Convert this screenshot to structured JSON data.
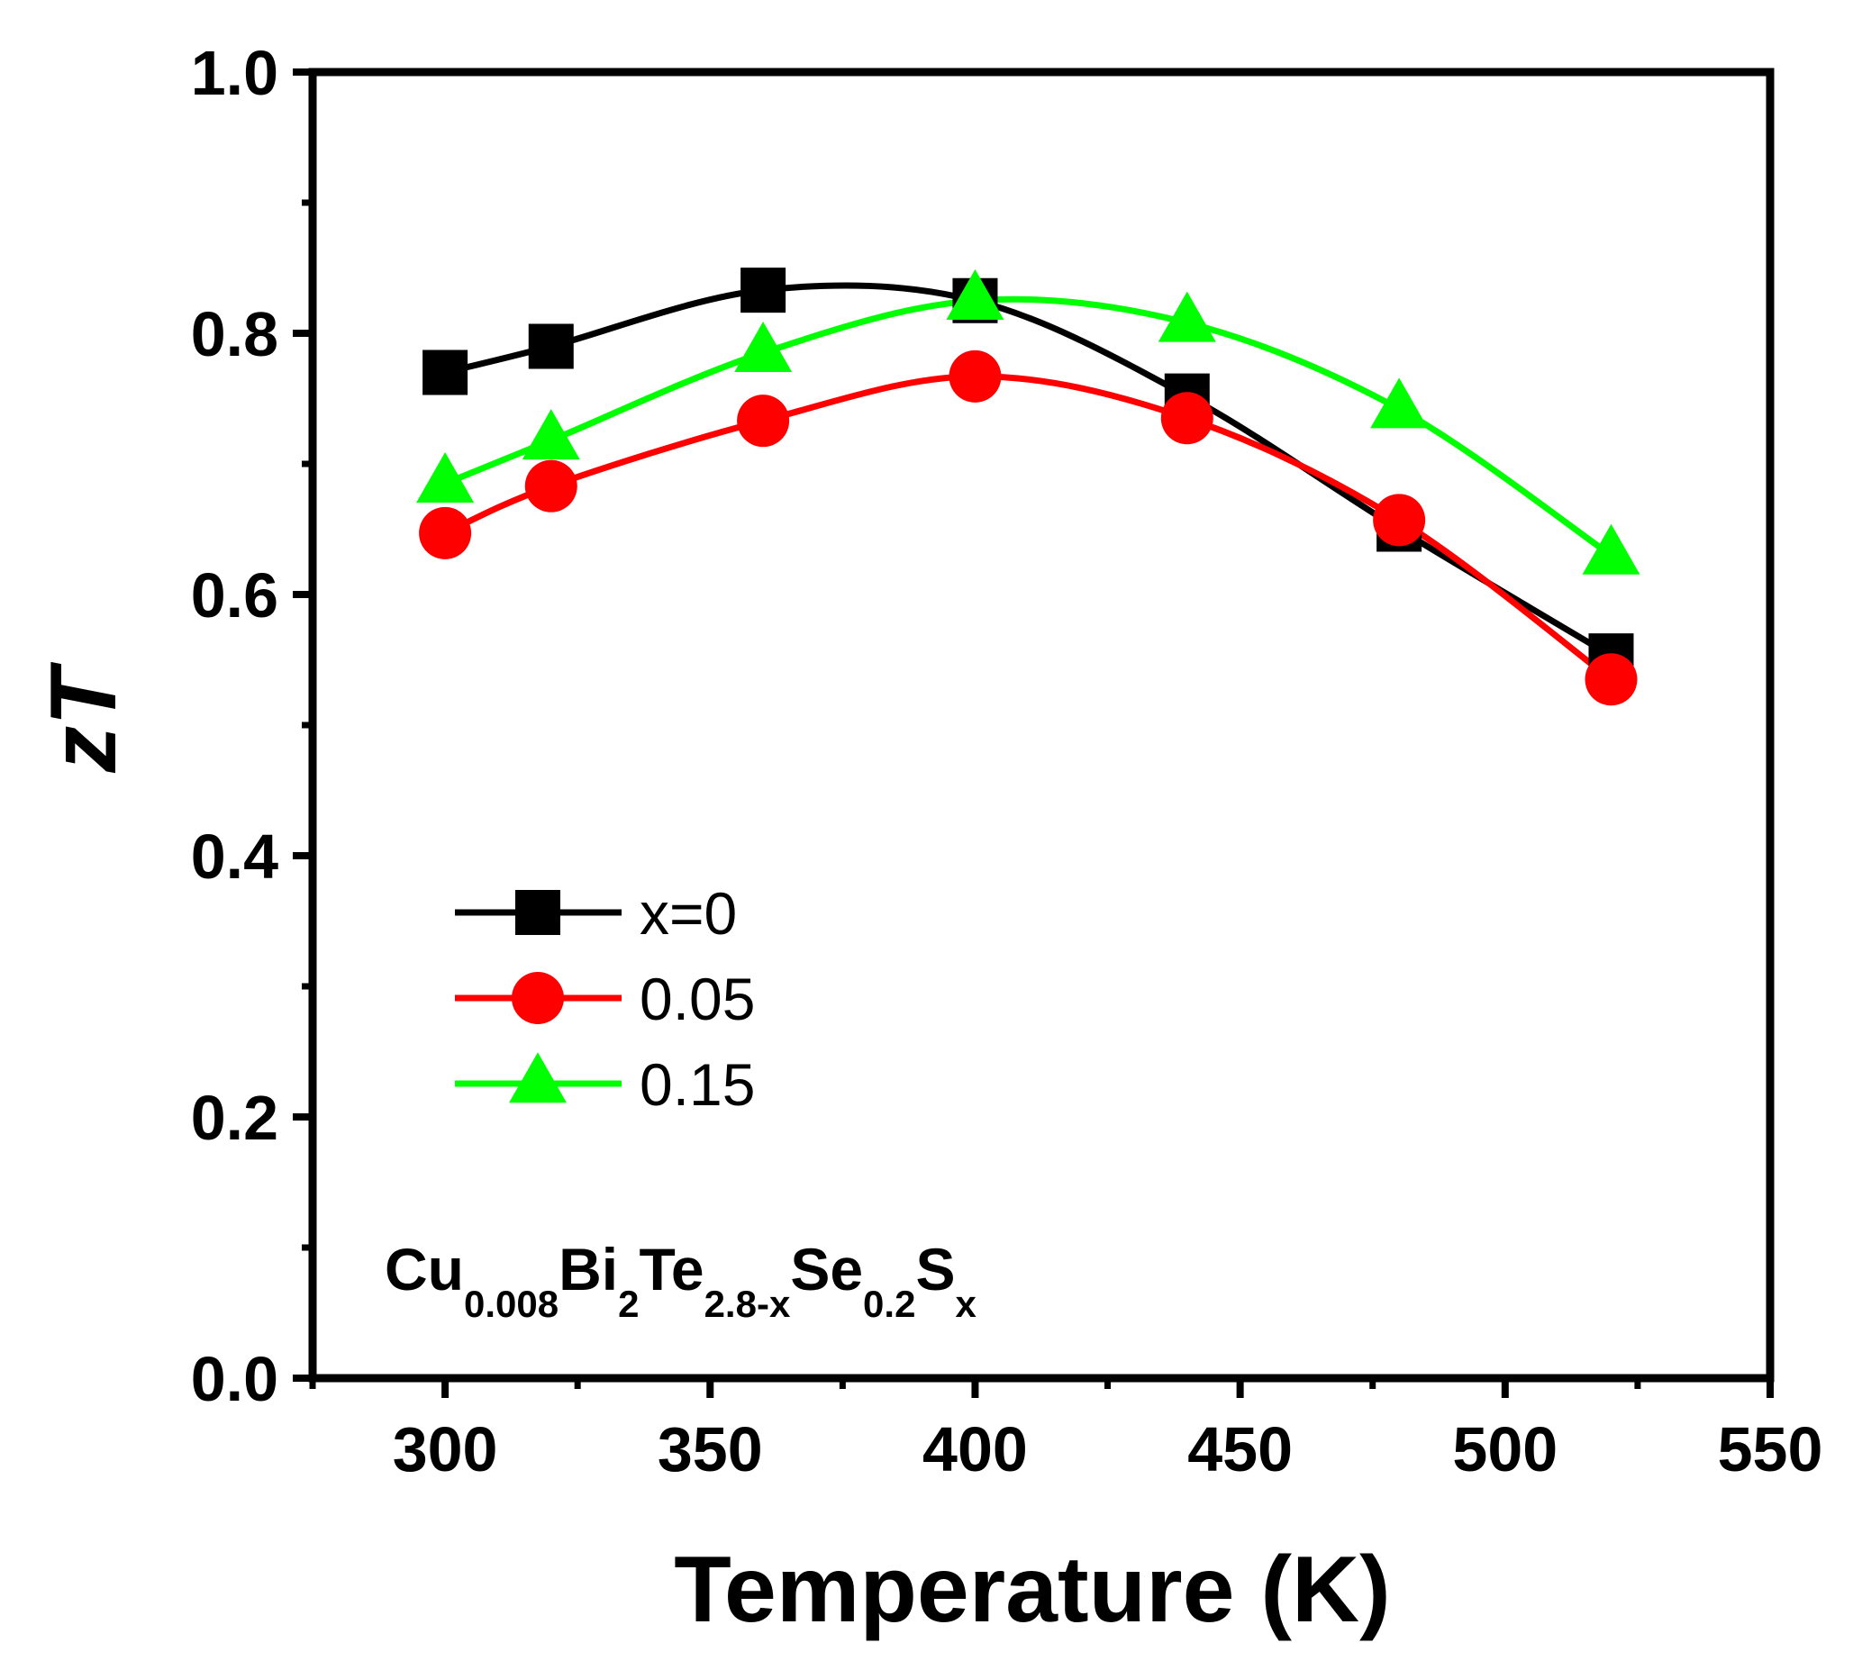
{
  "chart_data": {
    "type": "line",
    "title": "",
    "xlabel": "Temperature (K)",
    "ylabel": "zT",
    "xlim": [
      275,
      550
    ],
    "ylim": [
      0.0,
      1.0
    ],
    "x_ticks": [
      300,
      350,
      400,
      450,
      500,
      550
    ],
    "x_tick_labels": [
      "300",
      "350",
      "400",
      "450",
      "500",
      "550"
    ],
    "y_ticks": [
      0.0,
      0.2,
      0.4,
      0.6,
      0.8,
      1.0
    ],
    "y_tick_labels": [
      "0.0",
      "0.2",
      "0.4",
      "0.6",
      "0.8",
      "1.0"
    ],
    "grid": false,
    "legend_position": "left",
    "series": [
      {
        "name": "x=0",
        "marker": "square",
        "color": "#000000",
        "x": [
          300,
          320,
          360,
          400,
          440,
          480,
          520
        ],
        "y": [
          0.77,
          0.79,
          0.833,
          0.825,
          0.752,
          0.65,
          0.553
        ]
      },
      {
        "name": "0.05",
        "marker": "circle",
        "color": "#ff0000",
        "x": [
          300,
          320,
          360,
          400,
          440,
          480,
          520
        ],
        "y": [
          0.647,
          0.683,
          0.733,
          0.767,
          0.735,
          0.657,
          0.535
        ]
      },
      {
        "name": "0.15",
        "marker": "triangle",
        "color": "#00ff00",
        "x": [
          300,
          320,
          360,
          400,
          440,
          480,
          520
        ],
        "y": [
          0.685,
          0.718,
          0.785,
          0.825,
          0.808,
          0.742,
          0.63
        ]
      }
    ],
    "annotation": {
      "segments": [
        {
          "text": "Cu",
          "sub": false
        },
        {
          "text": "0.008",
          "sub": true
        },
        {
          "text": "Bi",
          "sub": false
        },
        {
          "text": "2",
          "sub": true
        },
        {
          "text": "Te",
          "sub": false
        },
        {
          "text": "2.8-x",
          "sub": true
        },
        {
          "text": "Se",
          "sub": false
        },
        {
          "text": "0.2",
          "sub": true
        },
        {
          "text": "S",
          "sub": false
        },
        {
          "text": "x",
          "sub": true
        }
      ]
    }
  }
}
